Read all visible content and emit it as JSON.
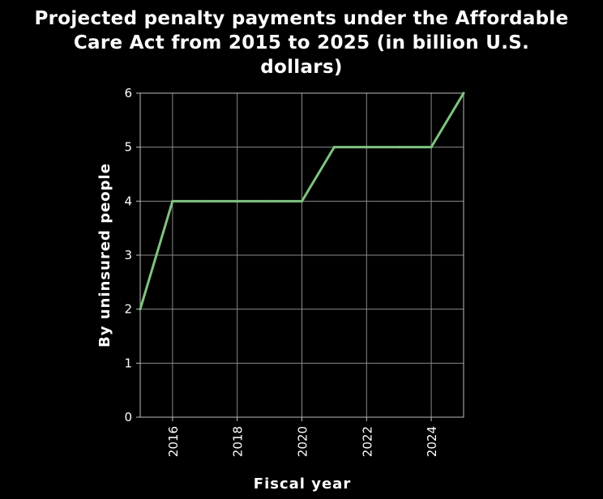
{
  "chart_data": {
    "type": "line",
    "title_lines": [
      "Projected penalty payments under the Affordable",
      "Care Act from 2015 to 2025 (in billion U.S.",
      "dollars)"
    ],
    "xlabel": "Fiscal year",
    "ylabel": "By uninsured people",
    "xlim": [
      2015,
      2025
    ],
    "ylim": [
      0,
      6
    ],
    "x_ticks": [
      2016,
      2018,
      2020,
      2022,
      2024
    ],
    "y_ticks": [
      0,
      1,
      2,
      3,
      4,
      5,
      6
    ],
    "grid": true,
    "series": [
      {
        "color": "#7fc47f",
        "x": [
          2015,
          2016,
          2017,
          2018,
          2019,
          2020,
          2021,
          2022,
          2023,
          2024,
          2025
        ],
        "y": [
          2,
          4,
          4,
          4,
          4,
          4,
          5,
          5,
          5,
          5,
          6
        ]
      }
    ]
  }
}
